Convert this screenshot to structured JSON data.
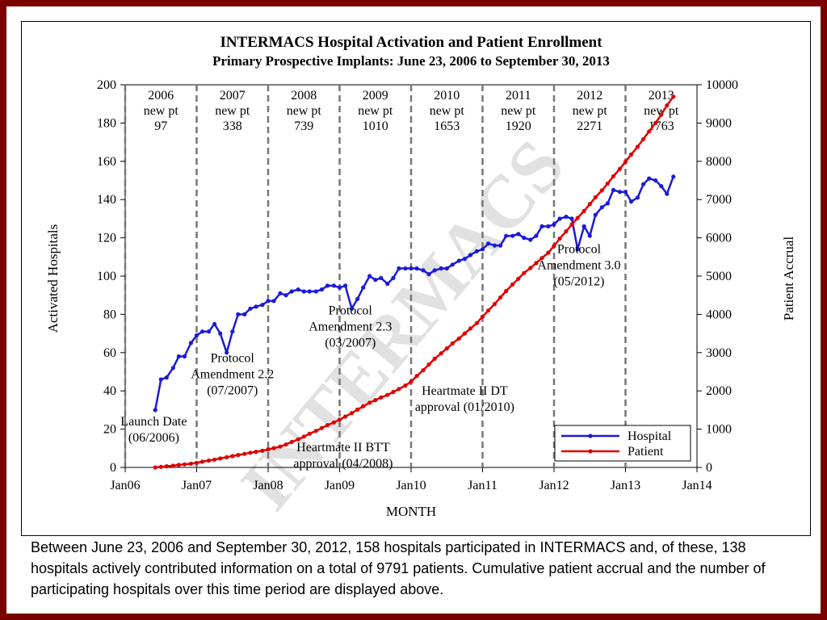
{
  "chart_data": {
    "type": "line",
    "title": "INTERMACS Hospital Activation and Patient Enrollment",
    "subtitle": "Primary Prospective Implants: June 23, 2006 to September 30, 2013",
    "xlabel": "MONTH",
    "ylabel": "Activated Hospitals",
    "y2label": "Patient Accrual",
    "xlim": [
      2006.0,
      2014.0
    ],
    "ylim": [
      0,
      200
    ],
    "y2lim": [
      0,
      10000
    ],
    "x_ticks": [
      "Jan06",
      "Jan07",
      "Jan08",
      "Jan09",
      "Jan10",
      "Jan11",
      "Jan12",
      "Jan13",
      "Jan14"
    ],
    "y_ticks": [
      "0",
      "20",
      "40",
      "60",
      "80",
      "100",
      "120",
      "140",
      "160",
      "180",
      "200"
    ],
    "y2_ticks": [
      "0",
      "1000",
      "2000",
      "3000",
      "4000",
      "5000",
      "6000",
      "7000",
      "8000",
      "9000",
      "10000"
    ],
    "watermark": "INTERMACS",
    "year_dividers": [
      2006.0,
      2007.0,
      2008.0,
      2009.0,
      2010.0,
      2011.0,
      2012.0,
      2013.0
    ],
    "year_labels": [
      {
        "year": "2006",
        "label": "new pt",
        "count": "97",
        "x": 2006.5
      },
      {
        "year": "2007",
        "label": "new pt",
        "count": "338",
        "x": 2007.5
      },
      {
        "year": "2008",
        "label": "new pt",
        "count": "739",
        "x": 2008.5
      },
      {
        "year": "2009",
        "label": "new pt",
        "count": "1010",
        "x": 2009.5
      },
      {
        "year": "2010",
        "label": "new pt",
        "count": "1653",
        "x": 2010.5
      },
      {
        "year": "2011",
        "label": "new pt",
        "count": "1920",
        "x": 2011.5
      },
      {
        "year": "2012",
        "label": "new pt",
        "count": "2271",
        "x": 2012.5
      },
      {
        "year": "2013",
        "label": "new pt",
        "count": "1763",
        "x": 2013.5
      }
    ],
    "annotations": [
      {
        "lines": [
          "Launch Date",
          "(06/2006)"
        ],
        "x": 2006.4,
        "y": 22
      },
      {
        "lines": [
          "Protocol",
          "Amendment 2.2",
          "(07/2007)"
        ],
        "x": 2007.5,
        "y": 55
      },
      {
        "lines": [
          "Protocol",
          "Amendment 2.3",
          "(03/2007)"
        ],
        "x": 2009.15,
        "y": 80
      },
      {
        "lines": [
          "Heartmate II BTT",
          "approval (04/2008)"
        ],
        "x": 2009.05,
        "y": 8.5
      },
      {
        "lines": [
          "Heartmate II DT",
          "approval (01/2010)"
        ],
        "x": 2010.75,
        "y": 38
      },
      {
        "lines": [
          "Protocol",
          "Amendment 3.0",
          "(05/2012)"
        ],
        "x": 2012.35,
        "y": 112
      }
    ],
    "legend": {
      "position": "bottom-right",
      "entries": [
        "Hospital",
        "Patient"
      ]
    },
    "series": [
      {
        "name": "Hospital",
        "axis": "left",
        "color": "#1a1adb",
        "x": [
          2006.42,
          2006.5,
          2006.58,
          2006.67,
          2006.75,
          2006.83,
          2006.92,
          2007.0,
          2007.08,
          2007.17,
          2007.25,
          2007.33,
          2007.42,
          2007.5,
          2007.58,
          2007.67,
          2007.75,
          2007.83,
          2007.92,
          2008.0,
          2008.08,
          2008.17,
          2008.25,
          2008.33,
          2008.42,
          2008.5,
          2008.58,
          2008.67,
          2008.75,
          2008.83,
          2008.92,
          2009.0,
          2009.08,
          2009.17,
          2009.25,
          2009.33,
          2009.42,
          2009.5,
          2009.58,
          2009.67,
          2009.75,
          2009.83,
          2009.92,
          2010.0,
          2010.08,
          2010.17,
          2010.25,
          2010.33,
          2010.42,
          2010.5,
          2010.58,
          2010.67,
          2010.75,
          2010.83,
          2010.92,
          2011.0,
          2011.08,
          2011.17,
          2011.25,
          2011.33,
          2011.42,
          2011.5,
          2011.58,
          2011.67,
          2011.75,
          2011.83,
          2011.92,
          2012.0,
          2012.08,
          2012.17,
          2012.25,
          2012.33,
          2012.42,
          2012.5,
          2012.58,
          2012.67,
          2012.75,
          2012.83,
          2012.92,
          2013.0,
          2013.08,
          2013.17,
          2013.25,
          2013.33,
          2013.42,
          2013.5,
          2013.58,
          2013.67
        ],
        "values": [
          30,
          46,
          47,
          52,
          58,
          58,
          65,
          69,
          71,
          71,
          75,
          70,
          60,
          71,
          80,
          80,
          83,
          84,
          85,
          87,
          87,
          91,
          90,
          92,
          93,
          92,
          92,
          92,
          93,
          95,
          95,
          94,
          95,
          83,
          88,
          94,
          100,
          98,
          99,
          96,
          99,
          104,
          104,
          104,
          104,
          103,
          101,
          103,
          104,
          104,
          106,
          108,
          109,
          111,
          113,
          114,
          117,
          116,
          116,
          121,
          121,
          122,
          120,
          119,
          121,
          126,
          126,
          127,
          130,
          131,
          130,
          114,
          126,
          121,
          132,
          136,
          138,
          145,
          144,
          144,
          139,
          141,
          148,
          151,
          150,
          147,
          143,
          152
        ]
      },
      {
        "name": "Patient",
        "axis": "right",
        "color": "#e00000",
        "x": [
          2006.42,
          2006.5,
          2006.58,
          2006.67,
          2006.75,
          2006.83,
          2006.92,
          2007.0,
          2007.08,
          2007.17,
          2007.25,
          2007.33,
          2007.42,
          2007.5,
          2007.58,
          2007.67,
          2007.75,
          2007.83,
          2007.92,
          2008.0,
          2008.08,
          2008.17,
          2008.25,
          2008.33,
          2008.42,
          2008.5,
          2008.58,
          2008.67,
          2008.75,
          2008.83,
          2008.92,
          2009.0,
          2009.08,
          2009.17,
          2009.25,
          2009.33,
          2009.42,
          2009.5,
          2009.58,
          2009.67,
          2009.75,
          2009.83,
          2009.92,
          2010.0,
          2010.08,
          2010.17,
          2010.25,
          2010.33,
          2010.42,
          2010.5,
          2010.58,
          2010.67,
          2010.75,
          2010.83,
          2010.92,
          2011.0,
          2011.08,
          2011.17,
          2011.25,
          2011.33,
          2011.42,
          2011.5,
          2011.58,
          2011.67,
          2011.75,
          2011.83,
          2011.92,
          2012.0,
          2012.08,
          2012.17,
          2012.25,
          2012.33,
          2012.42,
          2012.5,
          2012.58,
          2012.67,
          2012.75,
          2012.83,
          2012.92,
          2013.0,
          2013.08,
          2013.17,
          2013.25,
          2013.33,
          2013.42,
          2013.5,
          2013.58,
          2013.67
        ],
        "values": [
          0,
          15,
          30,
          45,
          65,
          80,
          97,
          120,
          150,
          180,
          205,
          235,
          265,
          295,
          325,
          355,
          385,
          410,
          435,
          470,
          505,
          545,
          600,
          665,
          735,
          805,
          880,
          955,
          1030,
          1105,
          1175,
          1250,
          1330,
          1420,
          1510,
          1600,
          1690,
          1760,
          1830,
          1895,
          1970,
          2050,
          2140,
          2240,
          2390,
          2540,
          2690,
          2840,
          2980,
          3110,
          3240,
          3370,
          3500,
          3630,
          3770,
          3940,
          4100,
          4270,
          4440,
          4610,
          4780,
          4930,
          5080,
          5210,
          5340,
          5470,
          5610,
          5790,
          5980,
          6170,
          6350,
          6520,
          6700,
          6880,
          7060,
          7240,
          7420,
          7610,
          7800,
          7990,
          8180,
          8380,
          8580,
          8780,
          9000,
          9220,
          9460,
          9690
        ]
      }
    ]
  },
  "caption": "Between June 23, 2006 and September 30, 2012, 158 hospitals participated in INTERMACS and, of these, 138 hospitals actively contributed information on a total of 9791 patients. Cumulative patient accrual and the number of participating hospitals over this time period are displayed above."
}
